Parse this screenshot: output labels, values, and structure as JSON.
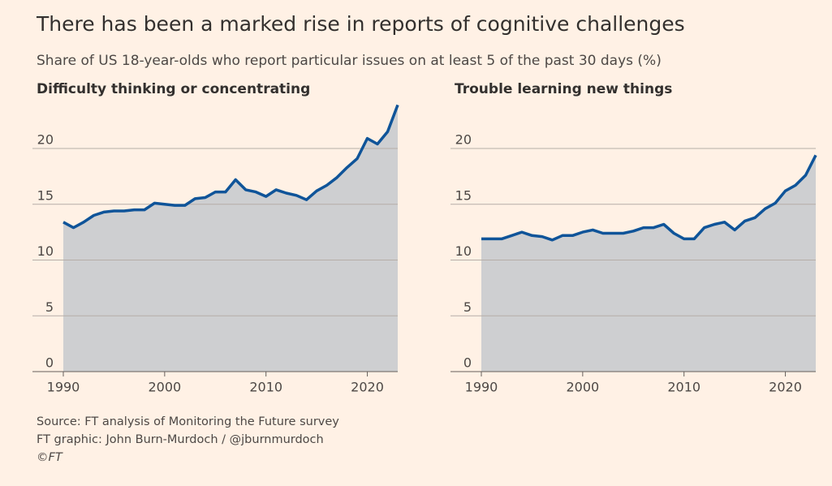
{
  "header": {
    "title": "There has been a marked rise in reports of cognitive challenges",
    "subtitle": "Share of US 18-year-olds who report particular issues on at least 5 of the past 30 days (%)"
  },
  "chart_data": [
    {
      "type": "area",
      "title": "Difficulty thinking or concentrating",
      "color": "#0f5499",
      "fill": "#cecfd1",
      "x": [
        1990,
        1991,
        1992,
        1993,
        1994,
        1995,
        1996,
        1997,
        1998,
        1999,
        2000,
        2001,
        2002,
        2003,
        2004,
        2005,
        2006,
        2007,
        2008,
        2009,
        2010,
        2011,
        2012,
        2013,
        2014,
        2015,
        2016,
        2017,
        2018,
        2019,
        2020,
        2021,
        2022,
        2023
      ],
      "values": [
        13.4,
        12.9,
        13.4,
        14.0,
        14.3,
        14.4,
        14.4,
        14.5,
        14.5,
        15.1,
        15.0,
        14.9,
        14.9,
        15.5,
        15.6,
        16.1,
        16.1,
        17.2,
        16.3,
        16.1,
        15.7,
        16.3,
        16.0,
        15.8,
        15.4,
        16.2,
        16.7,
        17.4,
        18.3,
        19.1,
        20.9,
        20.4,
        21.5,
        23.9
      ],
      "xlim": [
        1990,
        2023
      ],
      "xticks": [
        1990,
        2000,
        2010,
        2020
      ],
      "ylim": [
        0,
        24
      ],
      "yticks": [
        0,
        5,
        10,
        15,
        20
      ],
      "grid": true
    },
    {
      "type": "area",
      "title": "Trouble learning new things",
      "color": "#0f5499",
      "fill": "#cecfd1",
      "x": [
        1990,
        1991,
        1992,
        1993,
        1994,
        1995,
        1996,
        1997,
        1998,
        1999,
        2000,
        2001,
        2002,
        2003,
        2004,
        2005,
        2006,
        2007,
        2008,
        2009,
        2010,
        2011,
        2012,
        2013,
        2014,
        2015,
        2016,
        2017,
        2018,
        2019,
        2020,
        2021,
        2022,
        2023
      ],
      "values": [
        11.9,
        11.9,
        11.9,
        12.2,
        12.5,
        12.2,
        12.1,
        11.8,
        12.2,
        12.2,
        12.5,
        12.7,
        12.4,
        12.4,
        12.4,
        12.6,
        12.9,
        12.9,
        13.2,
        12.4,
        11.9,
        11.9,
        12.9,
        13.2,
        13.4,
        12.7,
        13.5,
        13.8,
        14.6,
        15.1,
        16.2,
        16.7,
        17.6,
        19.4
      ],
      "xlim": [
        1990,
        2023
      ],
      "xticks": [
        1990,
        2000,
        2010,
        2020
      ],
      "ylim": [
        0,
        24
      ],
      "yticks": [
        0,
        5,
        10,
        15,
        20
      ],
      "grid": true
    }
  ],
  "footer": {
    "source": "Source: FT analysis of Monitoring the Future survey",
    "credit": "FT graphic: John Burn-Murdoch / @jburnmurdoch",
    "copyright": "©FT"
  }
}
